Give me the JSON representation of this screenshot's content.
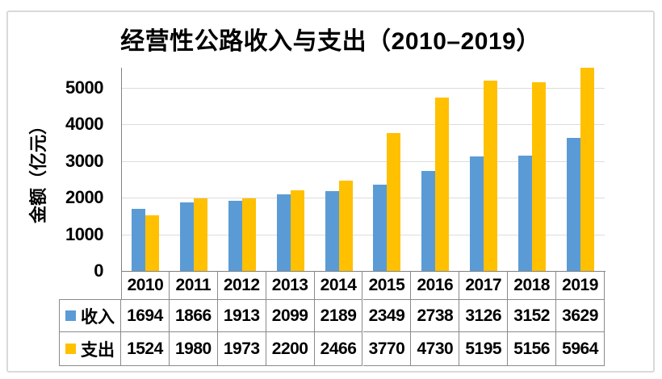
{
  "chart_data": {
    "type": "bar",
    "title": "经营性公路收入与支出（2010–2019）",
    "ylabel": "金额（亿元）",
    "categories": [
      "2010",
      "2011",
      "2012",
      "2013",
      "2014",
      "2015",
      "2016",
      "2017",
      "2018",
      "2019"
    ],
    "series": [
      {
        "name": "收入",
        "color": "#5B9BD5",
        "values": [
          1694,
          1866,
          1913,
          2099,
          2189,
          2349,
          2738,
          3126,
          3152,
          3629
        ]
      },
      {
        "name": "支出",
        "color": "#FFC000",
        "values": [
          1524,
          1980,
          1973,
          2200,
          2466,
          3770,
          4730,
          5195,
          5156,
          5964
        ]
      }
    ],
    "yticks": [
      0,
      1000,
      2000,
      3000,
      4000,
      5000
    ],
    "ylim": [
      0,
      5550
    ],
    "grid": true,
    "legend_position": "data-table-left",
    "colors": {
      "gridline": "#DCDCDC",
      "axis": "#808080",
      "table_border": "#8A8A8A",
      "text": "#000000",
      "frame": "#D9D9D9",
      "background": "#FFFFFF"
    }
  }
}
